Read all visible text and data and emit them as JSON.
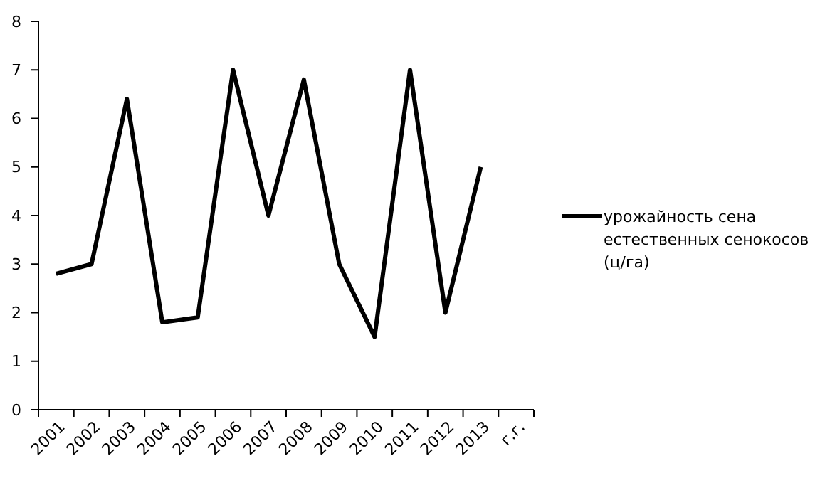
{
  "chart_data": {
    "type": "line",
    "categories": [
      "2001",
      "2002",
      "2003",
      "2004",
      "2005",
      "2006",
      "2007",
      "2008",
      "2009",
      "2010",
      "2011",
      "2012",
      "2013",
      "г.г."
    ],
    "series": [
      {
        "name": "урожайность сена естественных сенокосов (ц/га)",
        "color": "#000000",
        "values": [
          2.8,
          3,
          6.4,
          1.8,
          1.9,
          7,
          4,
          6.8,
          3,
          1.5,
          7,
          2,
          5,
          null
        ]
      }
    ],
    "ylim": [
      0,
      8
    ],
    "yticks": [
      0,
      1,
      2,
      3,
      4,
      5,
      6,
      7,
      8
    ],
    "grid": false,
    "legend": "right",
    "marker": "none",
    "line_style": "solid"
  }
}
